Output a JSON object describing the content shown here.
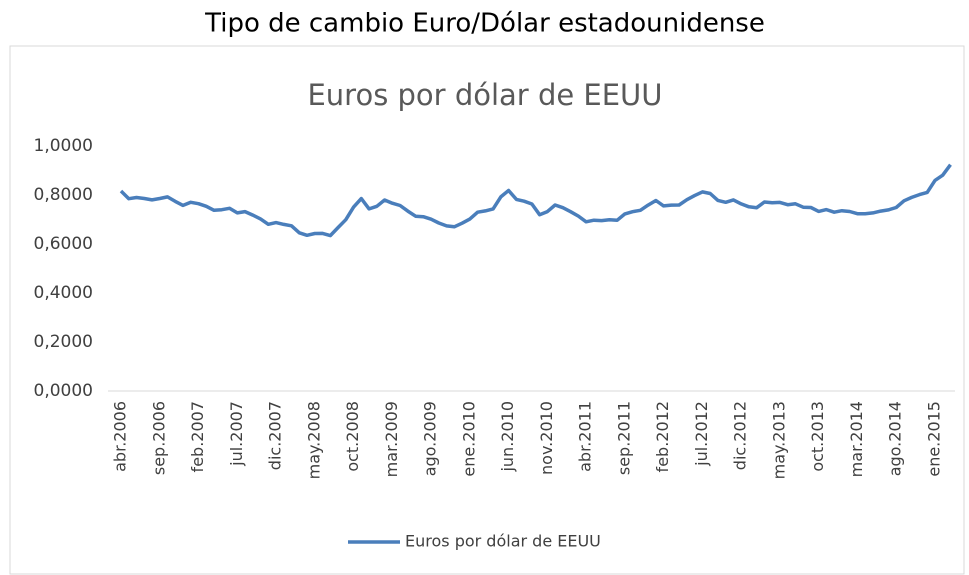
{
  "page_title": "Tipo de cambio Euro/Dólar estadounidense",
  "chart_data": {
    "type": "line",
    "title": "Euros por dólar de EEUU",
    "categories": [
      "abr.2006",
      null,
      null,
      null,
      null,
      "sep.2006",
      null,
      null,
      null,
      null,
      "feb.2007",
      null,
      null,
      null,
      null,
      "jul.2007",
      null,
      null,
      null,
      null,
      "dic.2007",
      null,
      null,
      null,
      null,
      "may.2008",
      null,
      null,
      null,
      null,
      "oct.2008",
      null,
      null,
      null,
      null,
      "mar.2009",
      null,
      null,
      null,
      null,
      "ago.2009",
      null,
      null,
      null,
      null,
      "ene.2010",
      null,
      null,
      null,
      null,
      "jun.2010",
      null,
      null,
      null,
      null,
      "nov.2010",
      null,
      null,
      null,
      null,
      "abr.2011",
      null,
      null,
      null,
      null,
      "sep.2011",
      null,
      null,
      null,
      null,
      "feb.2012",
      null,
      null,
      null,
      null,
      "jul.2012",
      null,
      null,
      null,
      null,
      "dic.2012",
      null,
      null,
      null,
      null,
      "may.2013",
      null,
      null,
      null,
      null,
      "oct.2013",
      null,
      null,
      null,
      null,
      "mar.2014",
      null,
      null,
      null,
      null,
      "ago.2014",
      null,
      null,
      null,
      null,
      "ene.2015",
      null,
      null
    ],
    "series": [
      {
        "name": "Euros por dólar de EEUU",
        "color": "#4a7ebb",
        "values": [
          0.8163,
          0.7849,
          0.7897,
          0.7859,
          0.7802,
          0.7857,
          0.7922,
          0.7738,
          0.7577,
          0.7701,
          0.7643,
          0.754,
          0.7376,
          0.7398,
          0.7456,
          0.7268,
          0.7324,
          0.7181,
          0.7023,
          0.6805,
          0.6873,
          0.6799,
          0.6744,
          0.6456,
          0.6354,
          0.6428,
          0.6434,
          0.6344,
          0.6675,
          0.6992,
          0.7507,
          0.7855,
          0.7434,
          0.7537,
          0.7796,
          0.7665,
          0.7573,
          0.7341,
          0.7134,
          0.7113,
          0.7014,
          0.6857,
          0.674,
          0.67,
          0.6849,
          0.7018,
          0.73,
          0.7351,
          0.7431,
          0.7923,
          0.8184,
          0.7822,
          0.7747,
          0.7632,
          0.7194,
          0.7321,
          0.7592,
          0.7482,
          0.732,
          0.7137,
          0.6905,
          0.6972,
          0.6957,
          0.6993,
          0.6966,
          0.7227,
          0.7317,
          0.7374,
          0.7586,
          0.7775,
          0.7556,
          0.7587,
          0.7593,
          0.781,
          0.7974,
          0.8125,
          0.806,
          0.7779,
          0.7704,
          0.7801,
          0.7636,
          0.7518,
          0.748,
          0.7714,
          0.7686,
          0.7698,
          0.7603,
          0.7641,
          0.7504,
          0.7491,
          0.733,
          0.7406,
          0.7297,
          0.7359,
          0.7327,
          0.7238,
          0.7235,
          0.7271,
          0.7343,
          0.7393,
          0.7488,
          0.7765,
          0.79,
          0.8018,
          0.8108,
          0.8594,
          0.881,
          0.9236
        ]
      }
    ],
    "ylim": [
      0,
      1
    ],
    "yticks": [
      {
        "value": 0,
        "label": "0,0000"
      },
      {
        "value": 0.2,
        "label": "0,2000"
      },
      {
        "value": 0.4,
        "label": "0,4000"
      },
      {
        "value": 0.6,
        "label": "0,6000"
      },
      {
        "value": 0.8,
        "label": "0,8000"
      },
      {
        "value": 1,
        "label": "1,0000"
      }
    ],
    "grid": false,
    "legend": "bottom"
  }
}
